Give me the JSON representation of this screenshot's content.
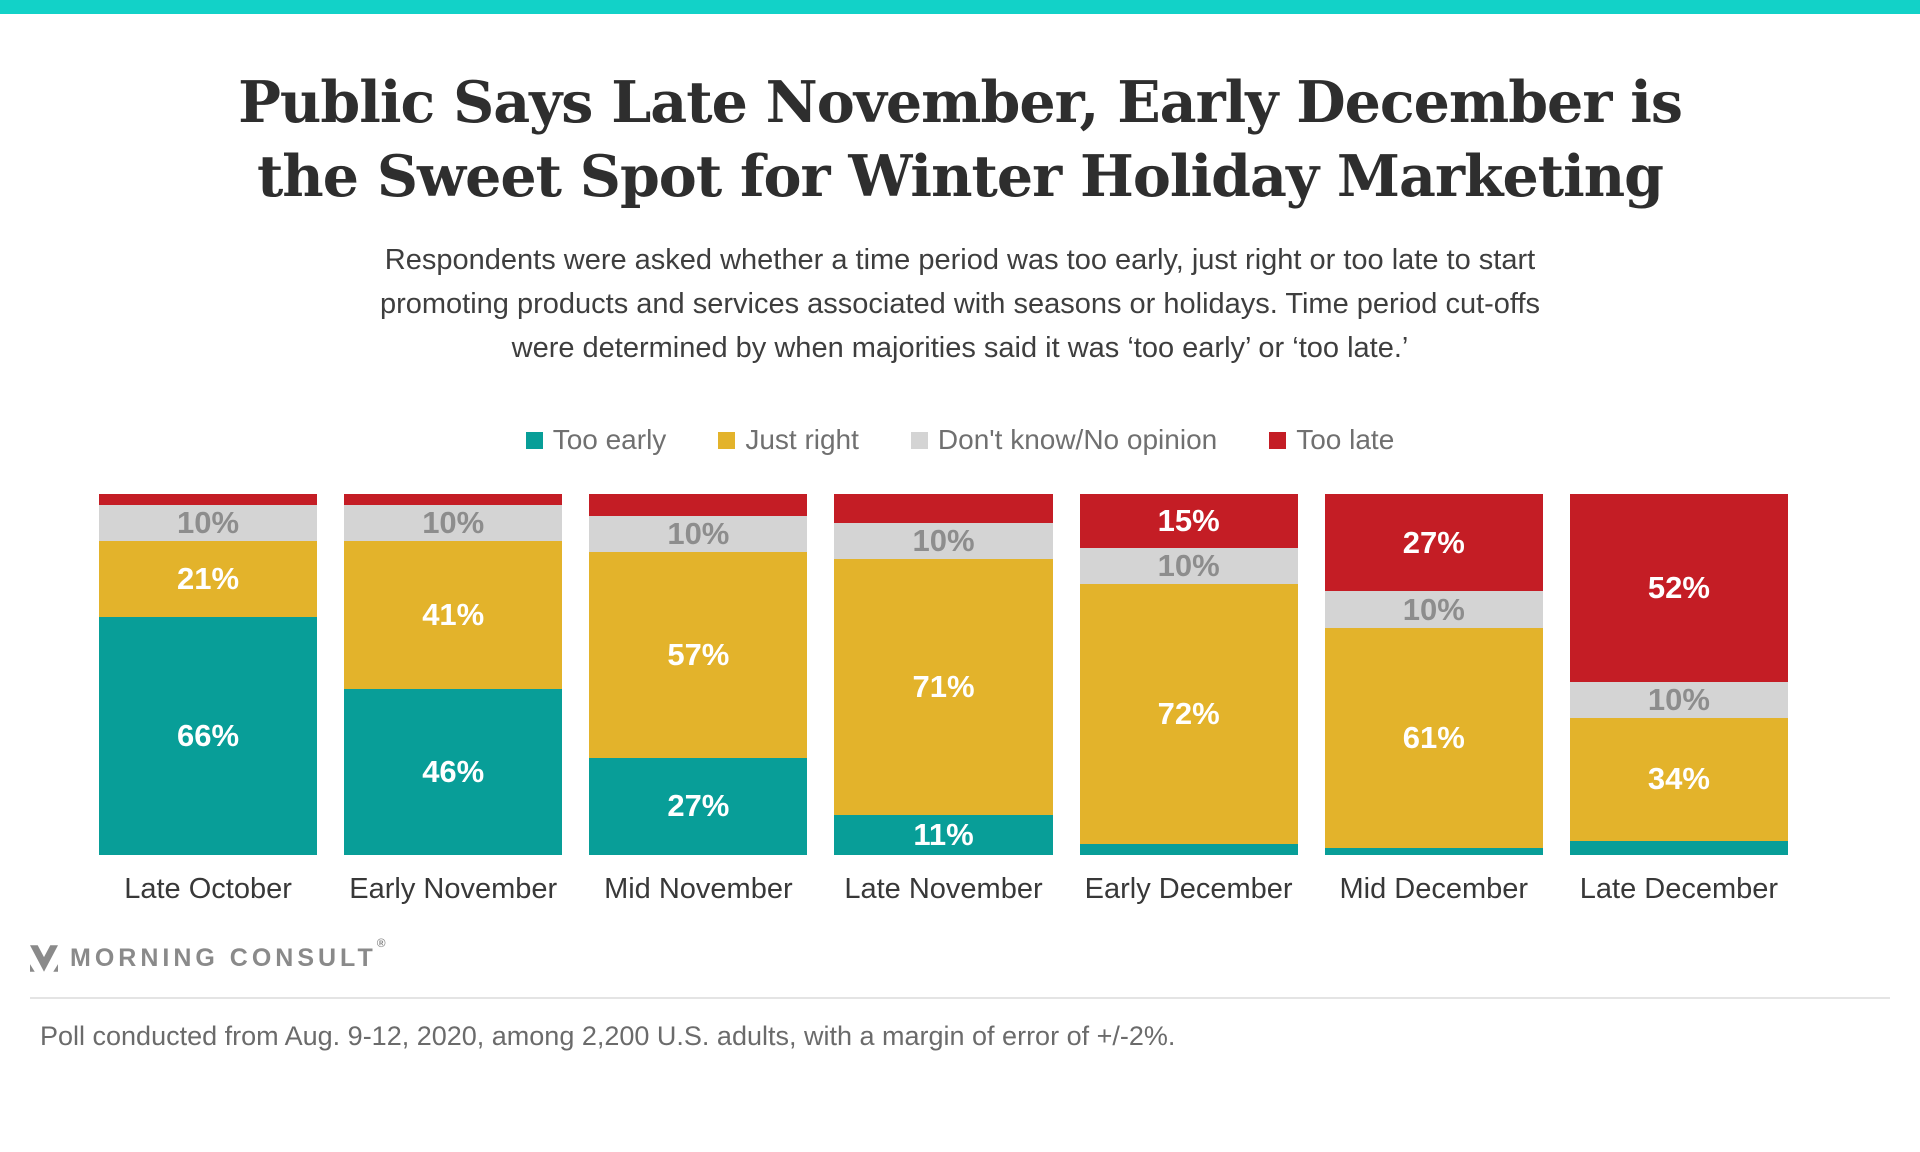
{
  "colors": {
    "accent_bar": "#12d2c8",
    "too_early": "#089e98",
    "just_right": "#e3b32b",
    "dont_know": "#d4d4d4",
    "too_late": "#c41d25"
  },
  "title": {
    "line1": "Public Says Late November, Early December is",
    "line2": "the Sweet Spot for Winter Holiday Marketing"
  },
  "subtitle": {
    "lines": [
      "Respondents were asked whether a time period was too early, just right or too late to start",
      "promoting products and services associated with seasons or holidays. Time period cut-offs",
      "were determined by when majorities said it was ‘too early’ or ‘too late.’"
    ]
  },
  "legend": {
    "items": [
      {
        "key": "too_early",
        "label": "Too early"
      },
      {
        "key": "just_right",
        "label": "Just right"
      },
      {
        "key": "dont_know",
        "label": "Don't know/No opinion"
      },
      {
        "key": "too_late",
        "label": "Too late"
      }
    ]
  },
  "chart_data": {
    "type": "bar",
    "stacked": true,
    "title": "Public Says Late November, Early December is the Sweet Spot for Winter Holiday Marketing",
    "categories": [
      "Late October",
      "Early November",
      "Mid November",
      "Late November",
      "Early December",
      "Mid December",
      "Late December"
    ],
    "series": [
      {
        "key": "too_early",
        "name": "Too early",
        "values": [
          66,
          46,
          27,
          11,
          3,
          2,
          4
        ],
        "labels": [
          "66%",
          "46%",
          "27%",
          "11%",
          "",
          "",
          ""
        ]
      },
      {
        "key": "just_right",
        "name": "Just right",
        "values": [
          21,
          41,
          57,
          71,
          72,
          61,
          34
        ],
        "labels": [
          "21%",
          "41%",
          "57%",
          "71%",
          "72%",
          "61%",
          "34%"
        ]
      },
      {
        "key": "dont_know",
        "name": "Don't know/No opinion",
        "values": [
          10,
          10,
          10,
          10,
          10,
          10,
          10
        ],
        "labels": [
          "10%",
          "10%",
          "10%",
          "10%",
          "10%",
          "10%",
          "10%"
        ]
      },
      {
        "key": "too_late",
        "name": "Too late",
        "values": [
          3,
          3,
          6,
          8,
          15,
          27,
          52
        ],
        "labels": [
          "",
          "",
          "",
          "",
          "15%",
          "27%",
          "52%"
        ]
      }
    ],
    "stack_order_bottom_to_top": [
      "too_early",
      "just_right",
      "dont_know",
      "too_late"
    ],
    "ylim": [
      0,
      100
    ],
    "grid": false,
    "legend_position": "top",
    "xlabel": "",
    "ylabel": ""
  },
  "logo": {
    "text": "MORNING CONSULT",
    "reg": "®"
  },
  "footer": {
    "note": "Poll conducted from Aug. 9-12, 2020, among 2,200 U.S. adults, with a margin of error of +/-2%."
  }
}
